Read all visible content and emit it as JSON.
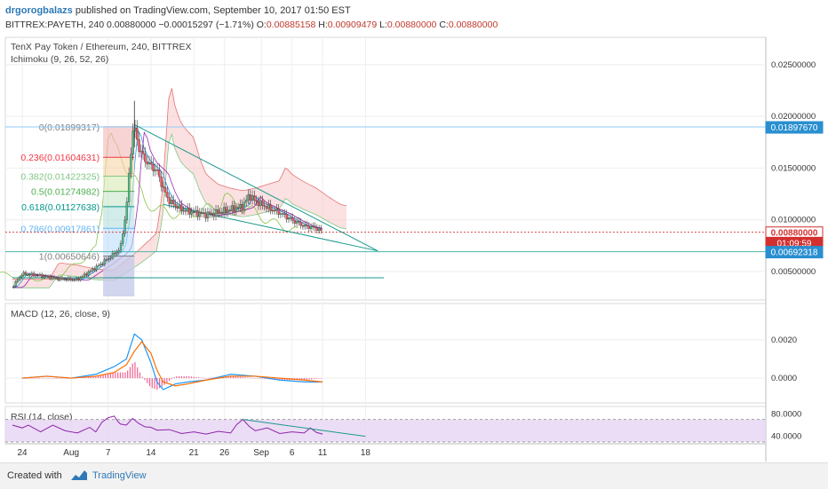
{
  "header": {
    "user": "drgorogbalazs",
    "published": "published on TradingView.com, September 10, 2017 01:50 EST",
    "symbol": "BITTREX:PAYETH, 240",
    "price": "0.00880000",
    "change": "−0.00015297 (−1.71%)",
    "open_label": "O:",
    "open": "0.00885158",
    "high_label": "H:",
    "high": "0.00909479",
    "low_label": "L:",
    "low": "0.00880000",
    "close_label": "C:",
    "close": "0.00880000"
  },
  "footer": {
    "created_with": "Created with",
    "brand": "TradingView"
  },
  "colors": {
    "up": "#53b987",
    "down": "#eb4d5c",
    "macd": "#2196f3",
    "signal": "#ff6d00",
    "rsi": "#8e24aa",
    "rsi_band": "#e6d5f2",
    "trend": "#1a9a8c",
    "price_tag": "#d32f2f",
    "level_tag": "#2a8fd0"
  },
  "chart_data": [
    {
      "type": "line",
      "title": "TenX Pay Token / Ethereum, 240, BITTREX",
      "indicator": "Ichimoku (9, 26, 52, 26)",
      "x_tick_labels": [
        "24",
        "Aug",
        "7",
        "14",
        "21",
        "26",
        "Sep",
        "6",
        "11",
        "18"
      ],
      "x_tick_days": [
        0,
        8,
        14,
        21,
        28,
        33,
        39,
        44,
        49,
        56
      ],
      "ylim": [
        0.0026,
        0.0273
      ],
      "y_ticks": [
        0.005,
        0.01,
        0.015,
        0.02,
        0.025
      ],
      "y_tick_labels": [
        "0.00500000",
        "0.01000000",
        "0.01500000",
        "0.02000000",
        "0.02500000"
      ],
      "price_path": [
        [
          -1.6,
          0.0035
        ],
        [
          0,
          0.0048
        ],
        [
          3,
          0.0046
        ],
        [
          6,
          0.0043
        ],
        [
          9,
          0.0042
        ],
        [
          11,
          0.005
        ],
        [
          13,
          0.0058
        ],
        [
          15,
          0.0067
        ],
        [
          16,
          0.0072
        ],
        [
          17,
          0.011
        ],
        [
          17.5,
          0.015
        ],
        [
          18,
          0.0185
        ],
        [
          18.3,
          0.0189
        ],
        [
          19,
          0.017
        ],
        [
          20,
          0.0158
        ],
        [
          21,
          0.0152
        ],
        [
          22,
          0.0147
        ],
        [
          23,
          0.013
        ],
        [
          24,
          0.0118
        ],
        [
          26,
          0.011
        ],
        [
          28,
          0.0107
        ],
        [
          30,
          0.0105
        ],
        [
          32,
          0.0107
        ],
        [
          34,
          0.011
        ],
        [
          36,
          0.0113
        ],
        [
          37,
          0.0124
        ],
        [
          38,
          0.0118
        ],
        [
          40,
          0.0112
        ],
        [
          42,
          0.0107
        ],
        [
          44,
          0.01
        ],
        [
          46,
          0.0094
        ],
        [
          48,
          0.0092
        ],
        [
          49,
          0.0088
        ]
      ],
      "fib_levels": [
        {
          "ratio": "0",
          "value": "0.01899317",
          "color": "#808080"
        },
        {
          "ratio": "0.236",
          "value": "0.01604631",
          "color": "#f23645"
        },
        {
          "ratio": "0.382",
          "value": "0.01422325",
          "color": "#81c784"
        },
        {
          "ratio": "0.5",
          "value": "0.01274982",
          "color": "#4caf50"
        },
        {
          "ratio": "0.618",
          "value": "0.01127638",
          "color": "#009688"
        },
        {
          "ratio": "0.786",
          "value": "0.00917861",
          "color": "#64b5f6"
        },
        {
          "ratio": "1",
          "value": "0.00650646",
          "color": "#808080"
        }
      ],
      "price_labels": [
        {
          "label": "0.01897670",
          "value": 0.0189767
        },
        {
          "label": "0.00880000",
          "value": 0.0088
        },
        {
          "label": "01:09:59",
          "value": 0.0078
        },
        {
          "label": "0.00692318",
          "value": 0.00692318
        }
      ],
      "support_line": 0.0044,
      "horizontal_lines": [
        0.0189767,
        0.00692318
      ]
    },
    {
      "type": "line",
      "title": "MACD (12, 26, close, 9)",
      "ylim": [
        -0.0012,
        0.0038
      ],
      "y_ticks": [
        0.0,
        0.002
      ],
      "y_tick_labels": [
        "0.0000",
        "0.0020"
      ],
      "macd": [
        [
          0,
          0.0
        ],
        [
          4,
          0.0001
        ],
        [
          8,
          0.0
        ],
        [
          12,
          0.0002
        ],
        [
          15,
          0.0006
        ],
        [
          17,
          0.001
        ],
        [
          18.3,
          0.0023
        ],
        [
          19.5,
          0.002
        ],
        [
          21,
          0.0008
        ],
        [
          22,
          -0.0002
        ],
        [
          23,
          -0.0006
        ],
        [
          25,
          -0.0003
        ],
        [
          27,
          -0.0002
        ],
        [
          30,
          -0.0001
        ],
        [
          34,
          0.0002
        ],
        [
          38,
          0.0001
        ],
        [
          42,
          -0.0001
        ],
        [
          46,
          -0.0002
        ],
        [
          49,
          -0.0002
        ]
      ],
      "signal": [
        [
          0,
          0.0
        ],
        [
          4,
          0.0001
        ],
        [
          8,
          0.0
        ],
        [
          12,
          0.0001
        ],
        [
          15,
          0.0003
        ],
        [
          17,
          0.0007
        ],
        [
          18.3,
          0.0014
        ],
        [
          19.5,
          0.0019
        ],
        [
          21,
          0.0013
        ],
        [
          22,
          0.0004
        ],
        [
          23,
          -0.0002
        ],
        [
          25,
          -0.0004
        ],
        [
          27,
          -0.0003
        ],
        [
          30,
          -0.0001
        ],
        [
          34,
          0.0001
        ],
        [
          38,
          0.0001
        ],
        [
          42,
          0.0
        ],
        [
          46,
          -0.0001
        ],
        [
          49,
          -0.0002
        ]
      ]
    },
    {
      "type": "line",
      "title": "RSI (14, close)",
      "ylim": [
        30,
        90
      ],
      "y_ticks": [
        40,
        80
      ],
      "y_tick_labels": [
        "40.0000",
        "80.0000"
      ],
      "band": [
        30,
        70
      ],
      "rsi": [
        [
          -1.6,
          60
        ],
        [
          0,
          55
        ],
        [
          1,
          60
        ],
        [
          3,
          48
        ],
        [
          5,
          60
        ],
        [
          7,
          50
        ],
        [
          9,
          46
        ],
        [
          11,
          56
        ],
        [
          12,
          48
        ],
        [
          13,
          65
        ],
        [
          14,
          73
        ],
        [
          15,
          76
        ],
        [
          15.5,
          68
        ],
        [
          16,
          62
        ],
        [
          17,
          60
        ],
        [
          18,
          72
        ],
        [
          19,
          63
        ],
        [
          20,
          57
        ],
        [
          21,
          56
        ],
        [
          22,
          51
        ],
        [
          24,
          52
        ],
        [
          26,
          45
        ],
        [
          28,
          48
        ],
        [
          30,
          44
        ],
        [
          32,
          49
        ],
        [
          34,
          46
        ],
        [
          35,
          61
        ],
        [
          36,
          70
        ],
        [
          37,
          58
        ],
        [
          38,
          50
        ],
        [
          40,
          55
        ],
        [
          42,
          45
        ],
        [
          44,
          48
        ],
        [
          46,
          46
        ],
        [
          47,
          55
        ],
        [
          48,
          47
        ],
        [
          49,
          44
        ]
      ],
      "rsi_trendline": [
        [
          36,
          70
        ],
        [
          56,
          40
        ]
      ]
    }
  ]
}
